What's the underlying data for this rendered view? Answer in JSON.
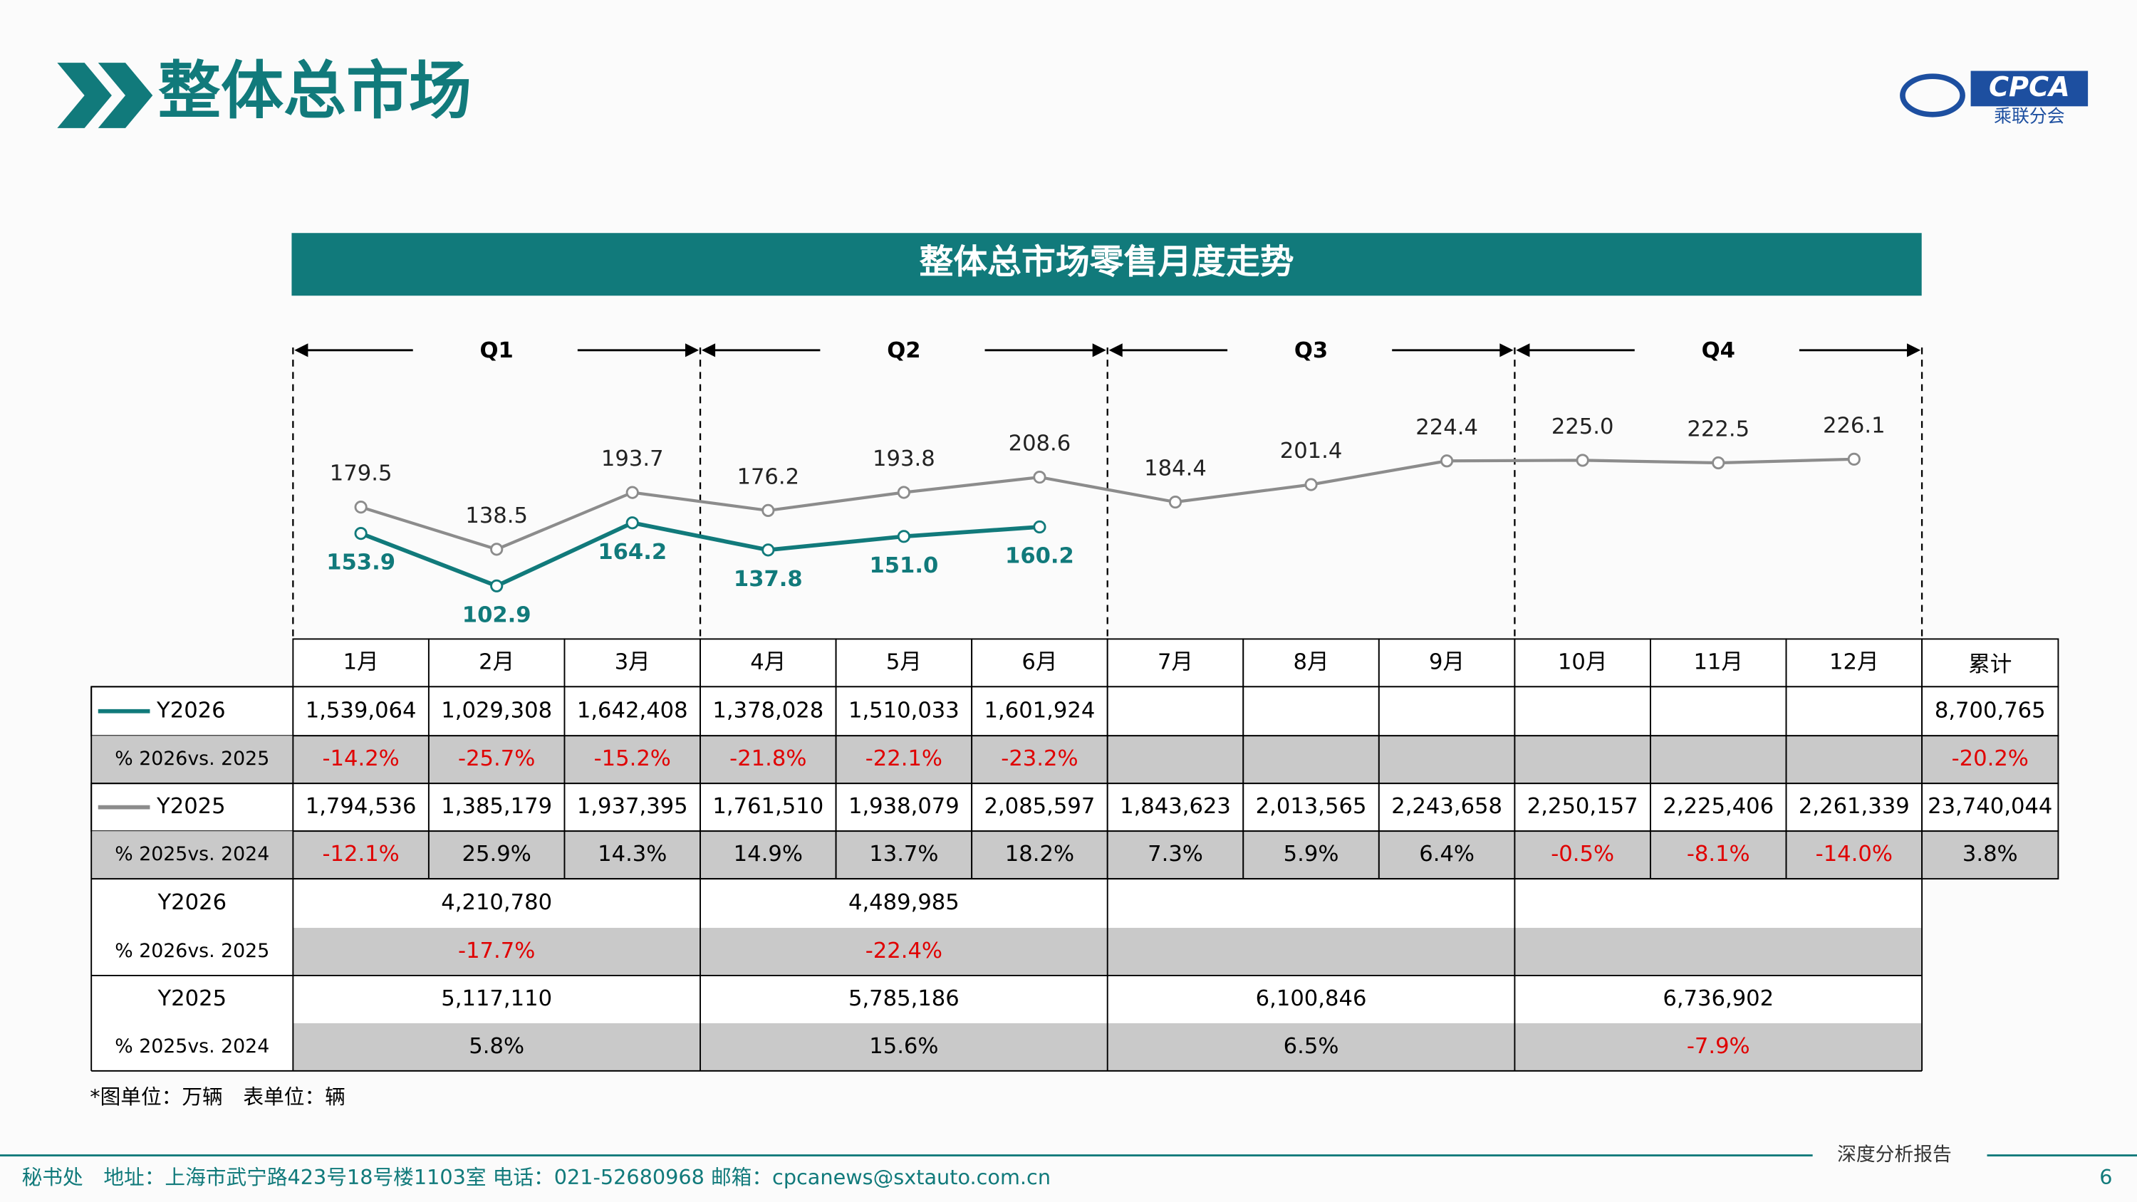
{
  "header": {
    "title": "整体总市场",
    "logo": "CPCA",
    "logo_sub": "乘联分会"
  },
  "chart_data": {
    "type": "line",
    "title": "整体总市场零售月度走势",
    "quarters": [
      "Q1",
      "Q2",
      "Q3",
      "Q4"
    ],
    "categories": [
      "1月",
      "2月",
      "3月",
      "4月",
      "5月",
      "6月",
      "7月",
      "8月",
      "9月",
      "10月",
      "11月",
      "12月"
    ],
    "series": [
      {
        "name": "Y2026",
        "color": "#117a7b",
        "values": [
          153.9,
          102.9,
          164.2,
          137.8,
          151.0,
          160.2,
          null,
          null,
          null,
          null,
          null,
          null
        ],
        "value_labels": [
          "153.9",
          "102.9",
          "164.2",
          "137.8",
          "151.0",
          "160.2",
          null,
          null,
          null,
          null,
          null,
          null
        ]
      },
      {
        "name": "Y2025",
        "color": "#8c8c8c",
        "values": [
          179.5,
          138.5,
          193.7,
          176.2,
          193.8,
          208.6,
          184.4,
          201.4,
          224.4,
          225.0,
          222.5,
          226.1
        ],
        "value_labels": [
          "179.5",
          "138.5",
          "193.7",
          "176.2",
          "193.8",
          "208.6",
          "184.4",
          "201.4",
          "224.4",
          "225.0",
          "222.5",
          "226.1"
        ]
      }
    ],
    "ylim": [
      80,
      240
    ]
  },
  "table": {
    "total_header": "累计",
    "monthly_rows": [
      {
        "label": "Y2026",
        "cells": [
          "1,539,064",
          "1,029,308",
          "1,642,408",
          "1,378,028",
          "1,510,033",
          "1,601,924",
          null,
          null,
          null,
          null,
          null,
          null
        ],
        "total": "8,700,765"
      },
      {
        "label": "% 2026vs. 2025",
        "cells": [
          "-14.2%",
          "-25.7%",
          "-15.2%",
          "-21.8%",
          "-22.1%",
          "-23.2%",
          null,
          null,
          null,
          null,
          null,
          null
        ],
        "total": "-20.2%"
      },
      {
        "label": "Y2025",
        "cells": [
          "1,794,536",
          "1,385,179",
          "1,937,395",
          "1,761,510",
          "1,938,079",
          "2,085,597",
          "1,843,623",
          "2,013,565",
          "2,243,658",
          "2,250,157",
          "2,225,406",
          "2,261,339"
        ],
        "total": "23,740,044"
      },
      {
        "label": "% 2025vs. 2024",
        "cells": [
          "-12.1%",
          "25.9%",
          "14.3%",
          "14.9%",
          "13.7%",
          "18.2%",
          "7.3%",
          "5.9%",
          "6.4%",
          "-0.5%",
          "-8.1%",
          "-14.0%"
        ],
        "total": "3.8%"
      }
    ],
    "quarterly_rows": [
      {
        "label": "Y2026",
        "cells": [
          "4,210,780",
          "4,489,985",
          null,
          null
        ]
      },
      {
        "label": "% 2026vs. 2025",
        "cells": [
          "-17.7%",
          "-22.4%",
          null,
          null
        ]
      },
      {
        "label": "Y2025",
        "cells": [
          "5,117,110",
          "5,785,186",
          "6,100,846",
          "6,736,902"
        ]
      },
      {
        "label": "% 2025vs. 2024",
        "cells": [
          "5.8%",
          "15.6%",
          "6.5%",
          "-7.9%"
        ]
      }
    ]
  },
  "footnote": "*图单位：万辆　表单位：辆",
  "footer": {
    "address": "秘书处　地址：上海市武宁路423号18号楼1103室  电话：021-52680968   邮箱：cpcanews@sxtauto.com.cn",
    "report": "深度分析报告",
    "page": "6"
  }
}
